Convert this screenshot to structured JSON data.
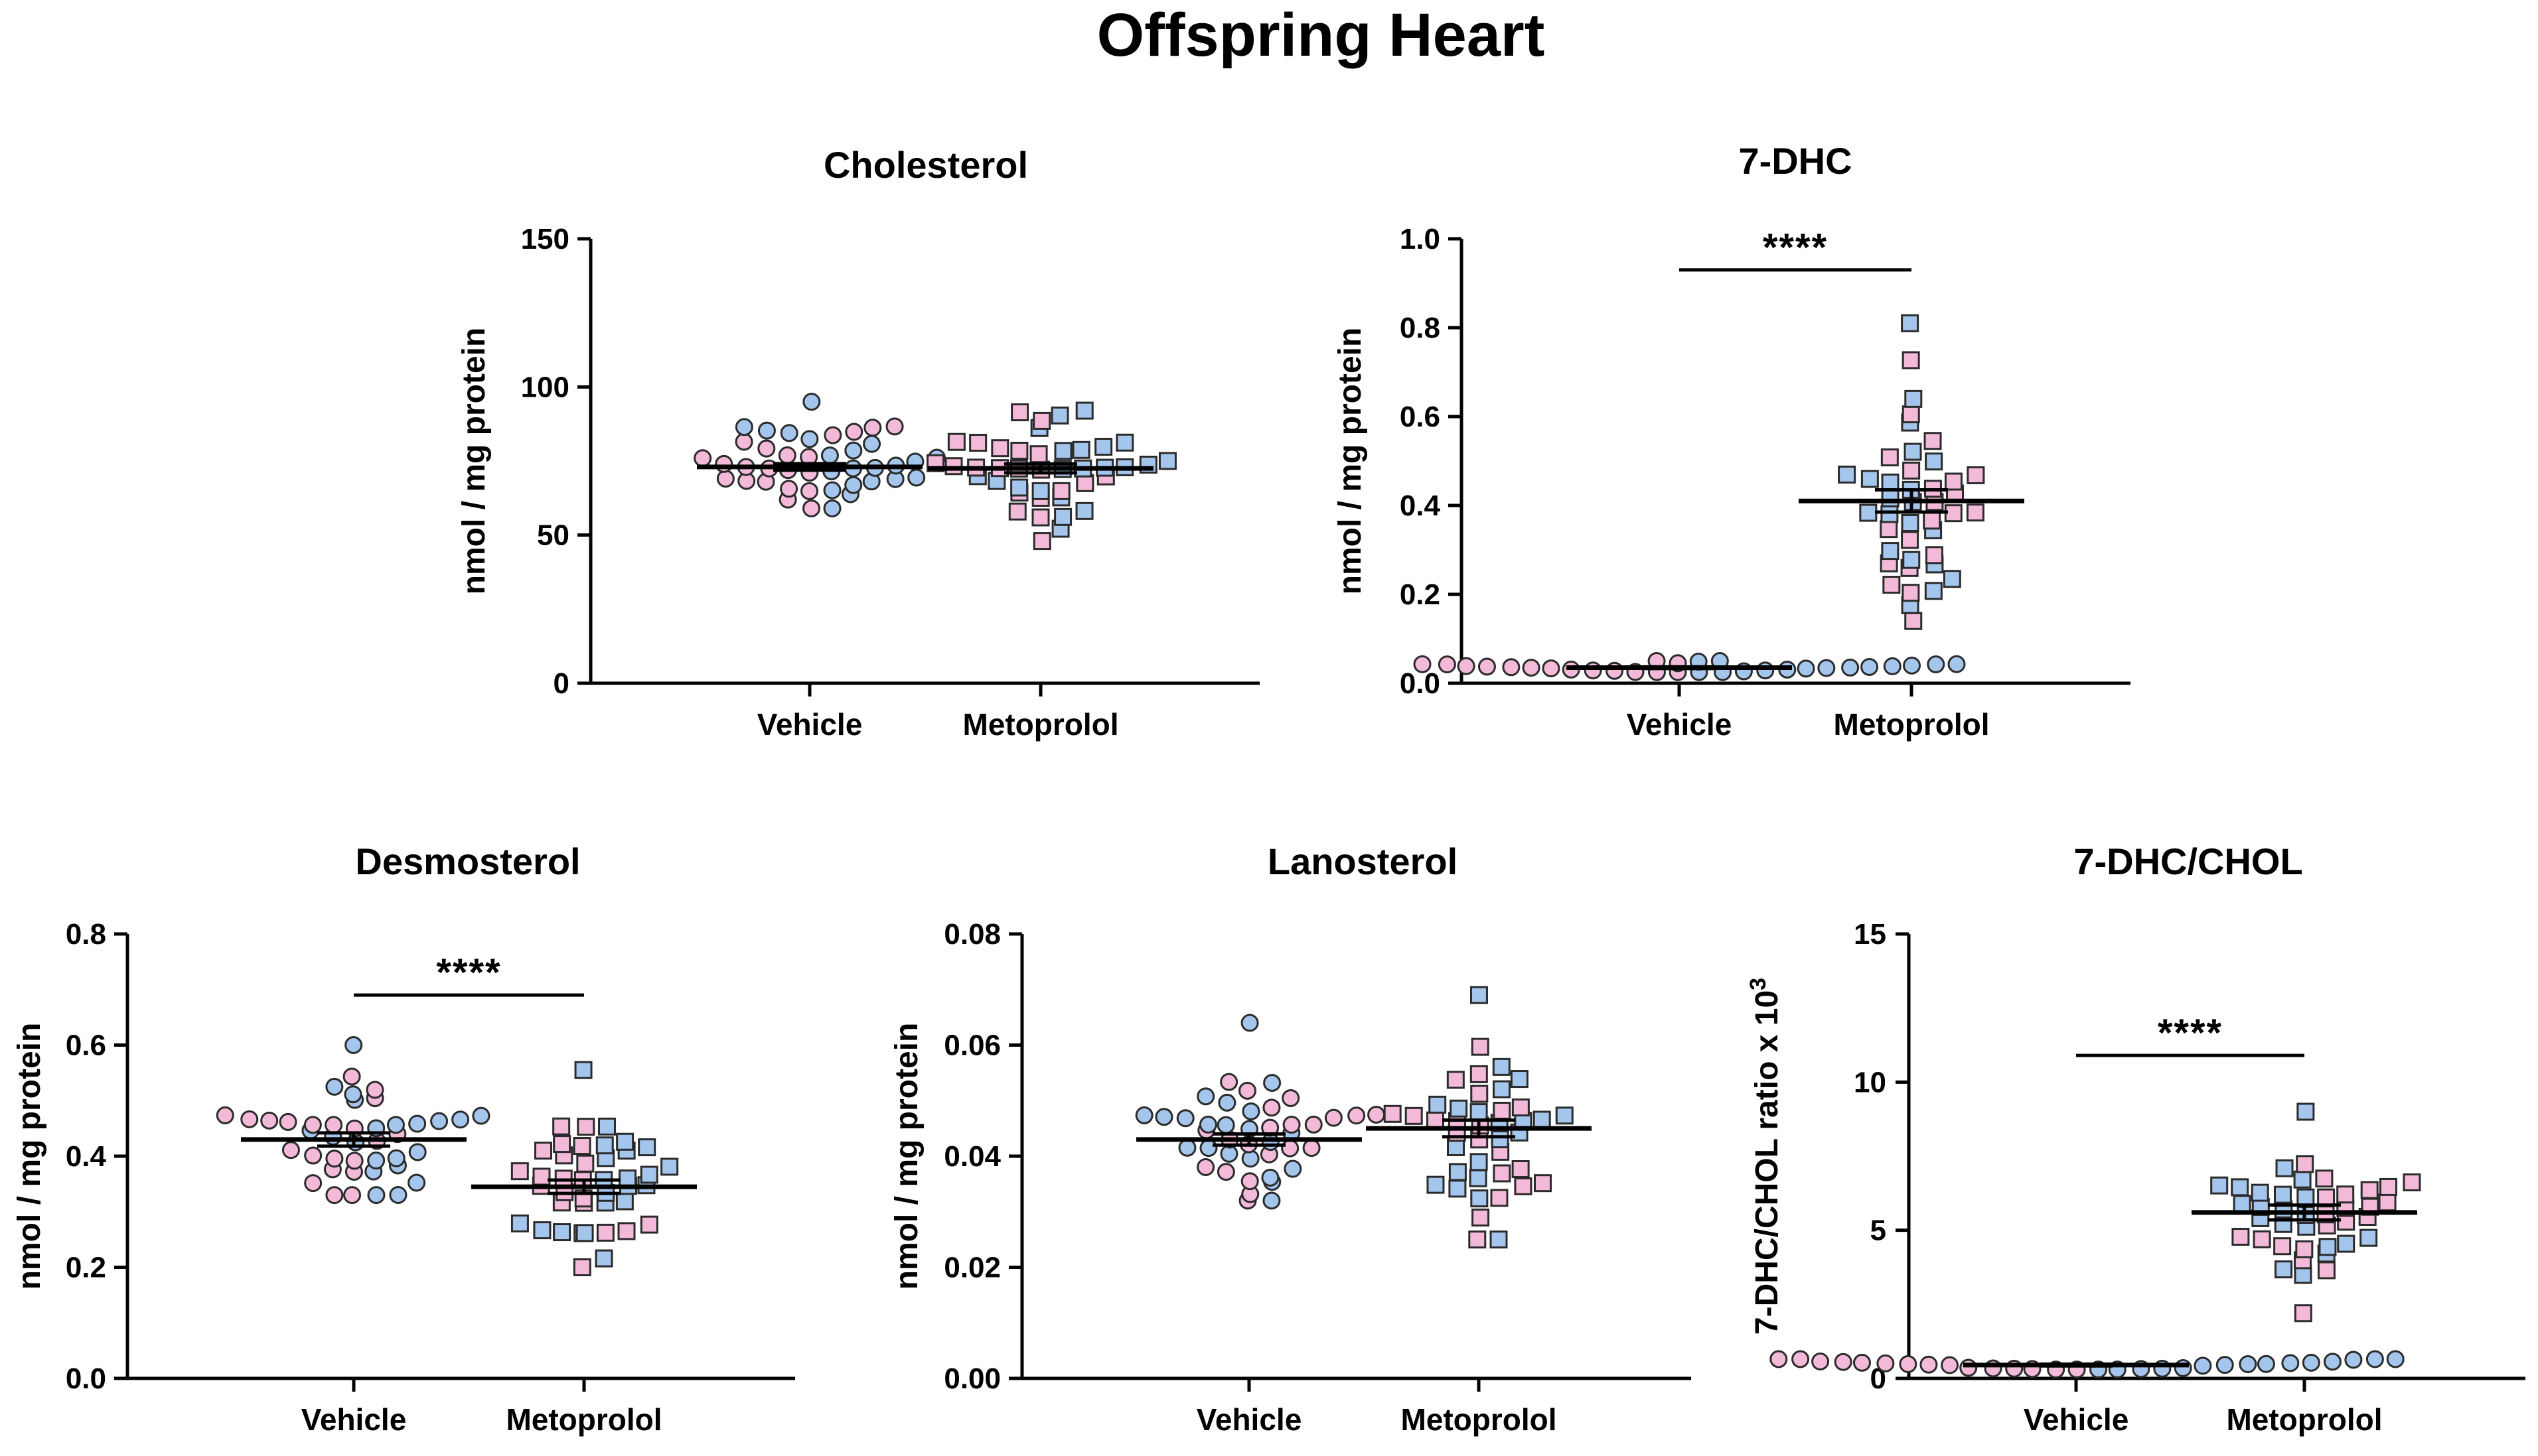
{
  "figure_title": "Offspring Heart",
  "colors": {
    "female": "#f3b9d9",
    "male": "#a4c5ec",
    "edge": "#2b2b2b"
  },
  "chart_data": [
    {
      "id": "cholesterol",
      "type": "scatter",
      "title": "Cholesterol",
      "ylabel": "nmol / mg protein",
      "ylim": [
        0,
        150
      ],
      "yticks": [
        0,
        50,
        100,
        150
      ],
      "ytick_labels": [
        "0",
        "50",
        "100",
        "150"
      ],
      "categories": [
        "Vehicle",
        "Metoprolol"
      ],
      "groups": [
        {
          "name": "Vehicle",
          "marker": "circle",
          "mean": 73,
          "sem": 1.1,
          "n": 42,
          "min": 59,
          "max": 95
        },
        {
          "name": "Metoprolol",
          "marker": "square",
          "mean": 72.5,
          "sem": 1.5,
          "n": 42,
          "min": 48,
          "max": 92
        }
      ],
      "significance": null
    },
    {
      "id": "7dhc",
      "type": "scatter",
      "title": "7-DHC",
      "ylabel": "nmol / mg protein",
      "ylim": [
        0,
        1.0
      ],
      "yticks": [
        0,
        0.2,
        0.4,
        0.6,
        0.8,
        1.0
      ],
      "ytick_labels": [
        "0.0",
        "0.2",
        "0.4",
        "0.6",
        "0.8",
        "1.0"
      ],
      "categories": [
        "Vehicle",
        "Metoprolol"
      ],
      "groups": [
        {
          "name": "Vehicle",
          "marker": "circle",
          "mean": 0.035,
          "sem": 0.002,
          "n": 30,
          "min": 0.025,
          "max": 0.05
        },
        {
          "name": "Metoprolol",
          "marker": "square",
          "mean": 0.41,
          "sem": 0.025,
          "n": 42,
          "min": 0.14,
          "max": 0.81
        }
      ],
      "significance": {
        "label": "****",
        "y": 0.93
      }
    },
    {
      "id": "desmosterol",
      "type": "scatter",
      "title": "Desmosterol",
      "ylabel": "nmol / mg protein",
      "ylim": [
        0,
        0.8
      ],
      "yticks": [
        0,
        0.2,
        0.4,
        0.6,
        0.8
      ],
      "ytick_labels": [
        "0.0",
        "0.2",
        "0.4",
        "0.6",
        "0.8"
      ],
      "categories": [
        "Vehicle",
        "Metoprolol"
      ],
      "groups": [
        {
          "name": "Vehicle",
          "marker": "circle",
          "mean": 0.43,
          "sem": 0.012,
          "n": 42,
          "min": 0.33,
          "max": 0.6
        },
        {
          "name": "Metoprolol",
          "marker": "square",
          "mean": 0.345,
          "sem": 0.012,
          "n": 42,
          "min": 0.2,
          "max": 0.555
        }
      ],
      "significance": {
        "label": "****",
        "y": 0.69
      }
    },
    {
      "id": "lanosterol",
      "type": "scatter",
      "title": "Lanosterol",
      "ylabel": "nmol / mg protein",
      "ylim": [
        0,
        0.08
      ],
      "yticks": [
        0,
        0.02,
        0.04,
        0.06,
        0.08
      ],
      "ytick_labels": [
        "0.00",
        "0.02",
        "0.04",
        "0.06",
        "0.08"
      ],
      "categories": [
        "Vehicle",
        "Metoprolol"
      ],
      "groups": [
        {
          "name": "Vehicle",
          "marker": "circle",
          "mean": 0.043,
          "sem": 0.001,
          "n": 42,
          "min": 0.032,
          "max": 0.064
        },
        {
          "name": "Metoprolol",
          "marker": "square",
          "mean": 0.045,
          "sem": 0.0015,
          "n": 42,
          "min": 0.025,
          "max": 0.069
        }
      ],
      "significance": null
    },
    {
      "id": "7dhc-chol",
      "type": "scatter",
      "title": "7-DHC/CHOL",
      "ylabel": "7-DHC/CHOL ratio x 10",
      "ylabel_sup": "3",
      "ylim": [
        0,
        15
      ],
      "yticks": [
        0,
        5,
        10,
        15
      ],
      "ytick_labels": [
        "0",
        "5",
        "10",
        "15"
      ],
      "categories": [
        "Vehicle",
        "Metoprolol"
      ],
      "groups": [
        {
          "name": "Vehicle",
          "marker": "circle",
          "mean": 0.45,
          "sem": 0.03,
          "n": 30,
          "min": 0.3,
          "max": 0.65
        },
        {
          "name": "Metoprolol",
          "marker": "square",
          "mean": 5.6,
          "sem": 0.25,
          "n": 42,
          "min": 2.2,
          "max": 9.0
        }
      ],
      "significance": {
        "label": "****",
        "y": 10.9
      }
    }
  ]
}
